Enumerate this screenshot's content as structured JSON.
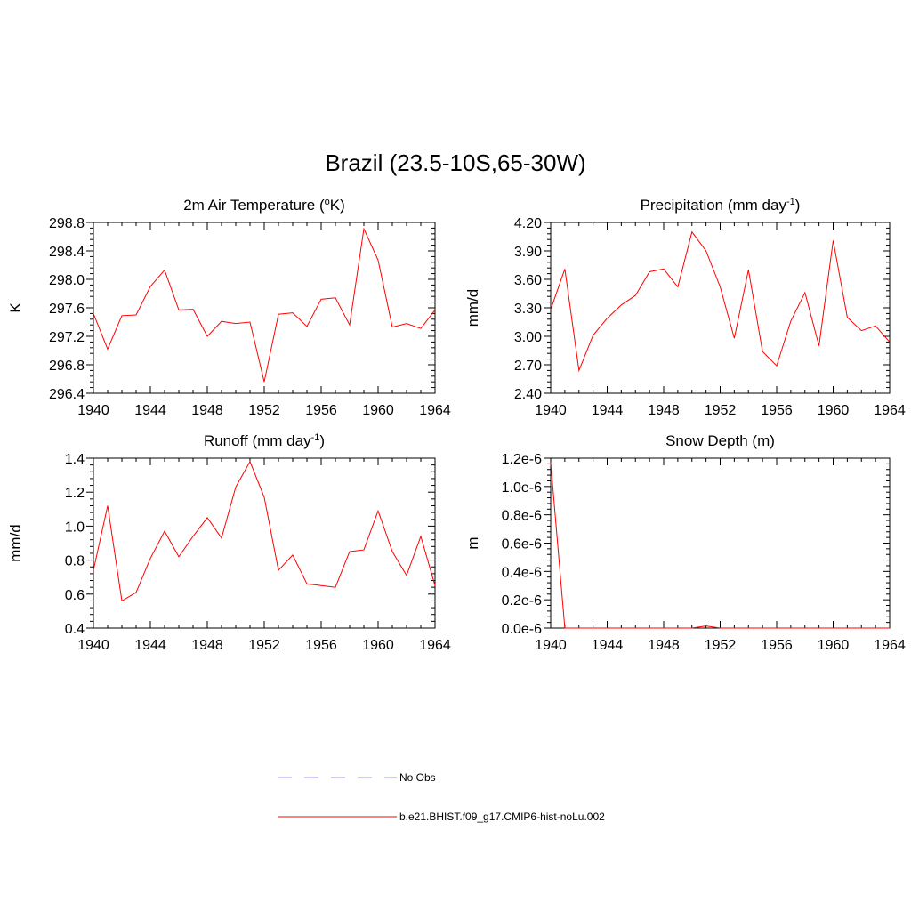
{
  "title": "Brazil (23.5-10S,65-30W)",
  "legend": {
    "items": [
      {
        "label": "No Obs",
        "color": "#9a9aff",
        "dash": true
      },
      {
        "label": "b.e21.BHIST.f09_g17.CMIP6-hist-noLu.002",
        "color": "#ff0000",
        "dash": false
      }
    ]
  },
  "chart_data": [
    {
      "type": "line",
      "title": "2m Air Temperature (",
      "title_sup": "o",
      "title_post": "K)",
      "ylabel": "K",
      "xlim": [
        1940,
        1964
      ],
      "ylim": [
        296.4,
        298.8
      ],
      "x_ticks": [
        "1940",
        "1944",
        "1948",
        "1952",
        "1956",
        "1960",
        "1964"
      ],
      "y_ticks": [
        "296.4",
        "296.8",
        "297.2",
        "297.6",
        "298.0",
        "298.4",
        "298.8"
      ],
      "series": [
        {
          "color": "#ff0000",
          "x": [
            1940,
            1941,
            1942,
            1943,
            1944,
            1945,
            1946,
            1947,
            1948,
            1949,
            1950,
            1951,
            1952,
            1953,
            1954,
            1955,
            1956,
            1957,
            1958,
            1959,
            1960,
            1961,
            1962,
            1963,
            1964
          ],
          "values": [
            297.52,
            297.02,
            297.49,
            297.5,
            297.9,
            298.13,
            297.57,
            297.58,
            297.2,
            297.41,
            297.38,
            297.4,
            296.56,
            297.51,
            297.53,
            297.34,
            297.72,
            297.74,
            297.36,
            298.71,
            298.27,
            297.33,
            297.38,
            297.31,
            297.57
          ]
        }
      ]
    },
    {
      "type": "line",
      "title": "Precipitation (mm day",
      "title_sup": "-1",
      "title_post": ")",
      "ylabel": "mm/d",
      "xlim": [
        1940,
        1964
      ],
      "ylim": [
        2.4,
        4.2
      ],
      "x_ticks": [
        "1940",
        "1944",
        "1948",
        "1952",
        "1956",
        "1960",
        "1964"
      ],
      "y_ticks": [
        "2.40",
        "2.70",
        "3.00",
        "3.30",
        "3.60",
        "3.90",
        "4.20"
      ],
      "series": [
        {
          "color": "#ff0000",
          "x": [
            1940,
            1941,
            1942,
            1943,
            1944,
            1945,
            1946,
            1947,
            1948,
            1949,
            1950,
            1951,
            1952,
            1953,
            1954,
            1955,
            1956,
            1957,
            1958,
            1959,
            1960,
            1961,
            1962,
            1963,
            1964
          ],
          "values": [
            3.28,
            3.71,
            2.64,
            3.01,
            3.19,
            3.33,
            3.43,
            3.68,
            3.71,
            3.52,
            4.1,
            3.9,
            3.52,
            2.98,
            3.7,
            2.84,
            2.69,
            3.16,
            3.46,
            2.9,
            4.01,
            3.2,
            3.06,
            3.11,
            2.94
          ]
        }
      ]
    },
    {
      "type": "line",
      "title": "Runoff (mm day",
      "title_sup": "-1",
      "title_post": ")",
      "ylabel": "mm/d",
      "xlim": [
        1940,
        1964
      ],
      "ylim": [
        0.4,
        1.4
      ],
      "x_ticks": [
        "1940",
        "1944",
        "1948",
        "1952",
        "1956",
        "1960",
        "1964"
      ],
      "y_ticks": [
        "0.4",
        "0.6",
        "0.8",
        "1.0",
        "1.2",
        "1.4"
      ],
      "series": [
        {
          "color": "#ff0000",
          "x": [
            1940,
            1941,
            1942,
            1943,
            1944,
            1945,
            1946,
            1947,
            1948,
            1949,
            1950,
            1951,
            1952,
            1953,
            1954,
            1955,
            1956,
            1957,
            1958,
            1959,
            1960,
            1961,
            1962,
            1963,
            1964
          ],
          "values": [
            0.74,
            1.12,
            0.56,
            0.61,
            0.81,
            0.97,
            0.82,
            0.94,
            1.05,
            0.93,
            1.23,
            1.38,
            1.17,
            0.74,
            0.83,
            0.66,
            0.65,
            0.64,
            0.85,
            0.86,
            1.09,
            0.85,
            0.71,
            0.94,
            0.65
          ]
        }
      ]
    },
    {
      "type": "line",
      "title": "Snow Depth (m)",
      "title_sup": "",
      "title_post": "",
      "ylabel": "m",
      "xlim": [
        1940,
        1964
      ],
      "ylim": [
        0,
        1.2e-06
      ],
      "x_ticks": [
        "1940",
        "1944",
        "1948",
        "1952",
        "1956",
        "1960",
        "1964"
      ],
      "y_ticks": [
        "0.0e-6",
        "0.2e-6",
        "0.4e-6",
        "0.6e-6",
        "0.8e-6",
        "1.0e-6",
        "1.2e-6"
      ],
      "series": [
        {
          "color": "#ff0000",
          "x": [
            1940,
            1941,
            1942,
            1943,
            1944,
            1945,
            1946,
            1947,
            1948,
            1949,
            1950,
            1951,
            1952,
            1953,
            1954,
            1955,
            1956,
            1957,
            1958,
            1959,
            1960,
            1961,
            1962,
            1963,
            1964
          ],
          "values": [
            1.17e-06,
            0,
            0,
            0,
            0,
            0,
            0,
            0,
            0,
            0,
            0,
            1.5e-08,
            0,
            0,
            0,
            0,
            0,
            0,
            0,
            0,
            0,
            0,
            0,
            0,
            0
          ]
        }
      ]
    }
  ]
}
